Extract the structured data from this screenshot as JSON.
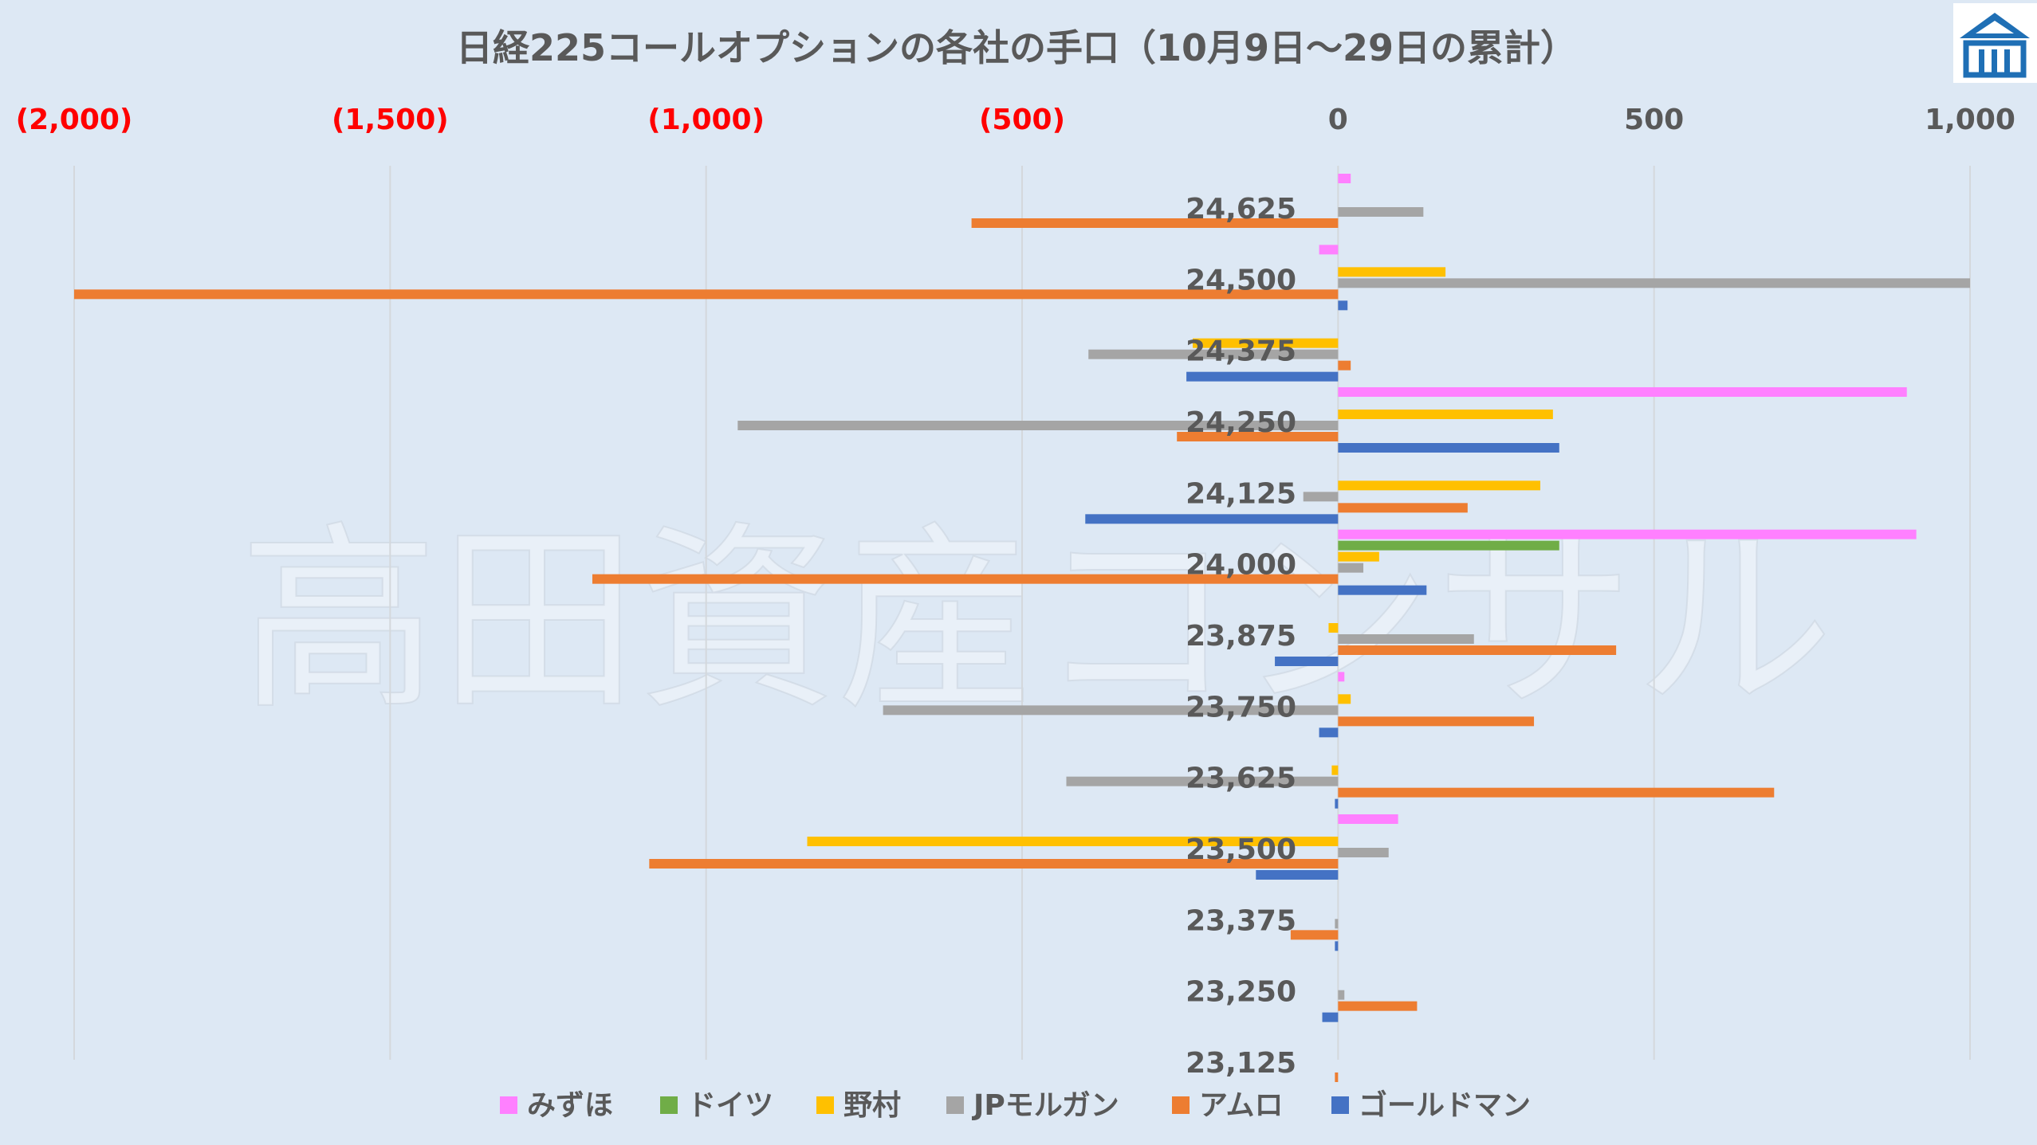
{
  "logo": {
    "name": "takada-asset-logo",
    "colors": {
      "roof": "#1f6fb5",
      "frame": "#1f6fb5"
    }
  },
  "watermark": "高田資産コンサル",
  "chart_data": {
    "type": "bar",
    "orientation": "horizontal",
    "title": "日経225コールオプションの各社の手口（10月9日～29日の累計）",
    "categories": [
      "24,625",
      "24,500",
      "24,375",
      "24,250",
      "24,125",
      "24,000",
      "23,875",
      "23,750",
      "23,625",
      "23,500",
      "23,375",
      "23,250",
      "23,125"
    ],
    "xlim": [
      -2000,
      1000
    ],
    "xticks": [
      -2000,
      -1500,
      -1000,
      -500,
      0,
      500,
      1000
    ],
    "xtick_labels": [
      "(2,000)",
      "(1,500)",
      "(1,000)",
      "(500)",
      "0",
      "500",
      "1,000"
    ],
    "axis_position": "top",
    "grid": true,
    "legend_position": "bottom",
    "series": [
      {
        "name": "みずほ",
        "color": "#ff80ff",
        "values": [
          20,
          -30,
          0,
          900,
          0,
          915,
          0,
          10,
          0,
          95,
          0,
          0,
          0
        ]
      },
      {
        "name": "ドイツ",
        "color": "#70ad47",
        "values": [
          0,
          0,
          0,
          0,
          0,
          350,
          0,
          0,
          0,
          0,
          0,
          0,
          0
        ]
      },
      {
        "name": "野村",
        "color": "#ffc000",
        "values": [
          0,
          170,
          -230,
          340,
          320,
          65,
          -15,
          20,
          -10,
          -840,
          0,
          0,
          0
        ]
      },
      {
        "name": "JPモルガン",
        "color": "#a5a5a5",
        "values": [
          135,
          1000,
          -395,
          -950,
          -55,
          40,
          215,
          -720,
          -430,
          80,
          -5,
          10,
          0
        ]
      },
      {
        "name": "アムロ",
        "color": "#ed7d31",
        "values": [
          -580,
          -2000,
          20,
          -255,
          205,
          -1180,
          440,
          310,
          690,
          -1090,
          -75,
          125,
          -5
        ]
      },
      {
        "name": "ゴールドマン",
        "color": "#4472c4",
        "values": [
          0,
          15,
          -240,
          350,
          -400,
          140,
          -100,
          -30,
          -5,
          -130,
          -5,
          -25,
          0
        ]
      }
    ]
  }
}
